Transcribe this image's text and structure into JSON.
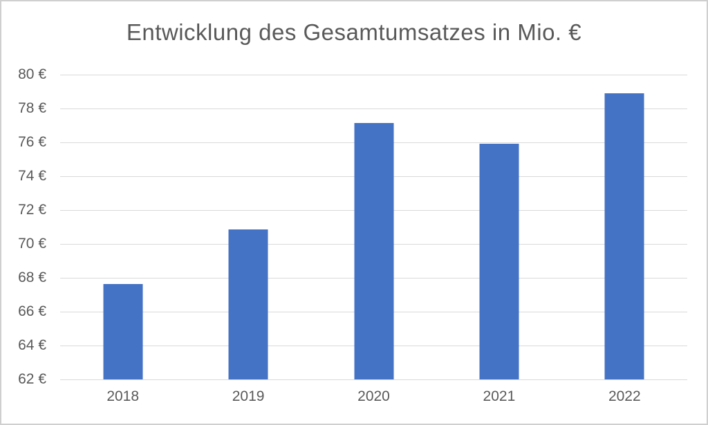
{
  "chart_data": {
    "type": "bar",
    "title": "Entwicklung des Gesamtumsatzes in Mio. €",
    "categories": [
      "2018",
      "2019",
      "2020",
      "2021",
      "2022"
    ],
    "values": [
      67.65,
      70.85,
      77.15,
      75.9,
      78.9
    ],
    "xlabel": "",
    "ylabel": "",
    "ylim": [
      62,
      80
    ],
    "ytick_step": 2,
    "ytick_suffix": " €",
    "grid": true,
    "legend": "none",
    "colors": {
      "bar": "#4472C4",
      "grid": "#D9D9D9",
      "text": "#595959",
      "frame_border": "#CFCFCF",
      "background": "#FFFFFF"
    }
  }
}
